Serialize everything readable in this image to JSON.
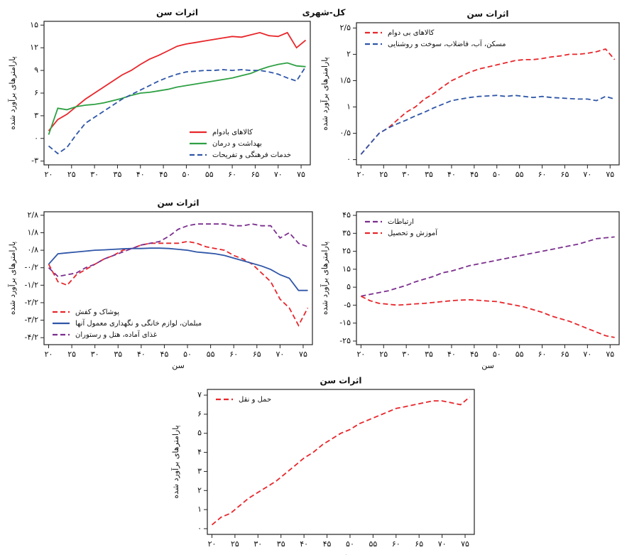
{
  "heading": "کل-شهری",
  "chart_data": [
    {
      "type": "line",
      "title": "اثرات سن",
      "y_label": "پارامترهای برآورد شده",
      "legend": "bottom-right",
      "x": [
        20,
        22,
        24,
        26,
        28,
        30,
        32,
        34,
        36,
        38,
        40,
        42,
        44,
        46,
        48,
        50,
        52,
        54,
        56,
        58,
        60,
        62,
        64,
        66,
        68,
        70,
        72,
        74,
        76
      ],
      "xlim": [
        19,
        77
      ],
      "xticks": [
        {
          "value": 20,
          "label": "۲۰"
        },
        {
          "value": 25,
          "label": "۲۵"
        },
        {
          "value": 30,
          "label": "۳۰"
        },
        {
          "value": 35,
          "label": "۳۵"
        },
        {
          "value": 40,
          "label": "۴۰"
        },
        {
          "value": 45,
          "label": "۴۵"
        },
        {
          "value": 50,
          "label": "۵۰"
        },
        {
          "value": 55,
          "label": "۵۵"
        },
        {
          "value": 60,
          "label": "۶۰"
        },
        {
          "value": 65,
          "label": "۶۵"
        },
        {
          "value": 70,
          "label": "۷۰"
        },
        {
          "value": 75,
          "label": "۷۵"
        }
      ],
      "ylim": [
        -3.5,
        15.5
      ],
      "yticks": [
        {
          "value": 15,
          "label": "۱۵"
        },
        {
          "value": 12,
          "label": "۱۲"
        },
        {
          "value": 9,
          "label": "۹"
        },
        {
          "value": 6,
          "label": "۶"
        },
        {
          "value": 3,
          "label": "۳"
        },
        {
          "value": 0,
          "label": "۰"
        },
        {
          "value": -3,
          "label": "-۳"
        }
      ],
      "series": [
        {
          "name": "کالاهای بادوام",
          "color": "#e8262b",
          "line_style": "solid",
          "values": [
            1,
            2.5,
            3.2,
            4.2,
            5.2,
            6,
            6.8,
            7.6,
            8.4,
            9,
            9.8,
            10.5,
            11,
            11.6,
            12.2,
            12.5,
            12.7,
            12.9,
            13.1,
            13.3,
            13.5,
            13.4,
            13.7,
            14,
            13.6,
            13.5,
            14,
            12,
            13
          ]
        },
        {
          "name": "بهداشت و درمان",
          "color": "#2ea043",
          "line_style": "solid",
          "values": [
            0.5,
            4,
            3.8,
            4.2,
            4.4,
            4.5,
            4.7,
            5,
            5.3,
            5.7,
            6,
            6.1,
            6.3,
            6.5,
            6.8,
            7,
            7.2,
            7.4,
            7.6,
            7.8,
            8,
            8.3,
            8.6,
            9.1,
            9.5,
            9.8,
            10,
            9.6,
            9.5
          ]
        },
        {
          "name": "خدمات فرهنگی و تفریحات",
          "color": "#2f56a8",
          "line_style": "dashed",
          "values": [
            -1,
            -2,
            -1.2,
            0.5,
            2,
            2.8,
            3.6,
            4.4,
            5.2,
            5.8,
            6.4,
            7,
            7.6,
            8.1,
            8.5,
            8.8,
            8.9,
            9,
            9,
            9.1,
            9,
            9.1,
            9,
            9,
            8.8,
            8.5,
            8,
            7.6,
            9.5
          ]
        }
      ]
    },
    {
      "type": "line",
      "title": "اثرات سن",
      "y_label": "پارامترهای برآورد شده",
      "legend": "top-left",
      "x": [
        20,
        22,
        24,
        26,
        28,
        30,
        32,
        34,
        36,
        38,
        40,
        42,
        44,
        46,
        48,
        50,
        52,
        54,
        56,
        58,
        60,
        62,
        64,
        66,
        68,
        70,
        72,
        74,
        76
      ],
      "xlim": [
        19,
        77
      ],
      "xticks": [
        {
          "value": 20,
          "label": "۲۰"
        },
        {
          "value": 25,
          "label": "۲۵"
        },
        {
          "value": 30,
          "label": "۳۰"
        },
        {
          "value": 35,
          "label": "۳۵"
        },
        {
          "value": 40,
          "label": "۴۰"
        },
        {
          "value": 45,
          "label": "۴۵"
        },
        {
          "value": 50,
          "label": "۵۰"
        },
        {
          "value": 55,
          "label": "۵۵"
        },
        {
          "value": 60,
          "label": "۶۰"
        },
        {
          "value": 65,
          "label": "۶۵"
        },
        {
          "value": 70,
          "label": "۷۰"
        },
        {
          "value": 75,
          "label": "۷۵"
        }
      ],
      "ylim": [
        -0.1,
        2.6
      ],
      "yticks": [
        {
          "value": 2.5,
          "label": "۲/۵"
        },
        {
          "value": 2,
          "label": "۲"
        },
        {
          "value": 1.5,
          "label": "۱/۵"
        },
        {
          "value": 1,
          "label": "۱"
        },
        {
          "value": 0.5,
          "label": "۰/۵"
        },
        {
          "value": 0,
          "label": "۰"
        }
      ],
      "series": [
        {
          "name": "کالاهای بی دوام",
          "color": "#e8262b",
          "line_style": "dashed",
          "values": [
            0.1,
            0.3,
            0.5,
            0.6,
            0.75,
            0.9,
            1.0,
            1.15,
            1.25,
            1.38,
            1.5,
            1.58,
            1.66,
            1.72,
            1.76,
            1.8,
            1.84,
            1.88,
            1.9,
            1.9,
            1.92,
            1.95,
            1.97,
            2.0,
            2.0,
            2.02,
            2.05,
            2.1,
            1.9
          ]
        },
        {
          "name": "مسکن، آب، فاضلاب، سوخت و روشنایی",
          "color": "#2f56a8",
          "line_style": "dashed",
          "values": [
            0.1,
            0.3,
            0.5,
            0.6,
            0.68,
            0.75,
            0.83,
            0.9,
            0.98,
            1.05,
            1.12,
            1.15,
            1.18,
            1.2,
            1.21,
            1.22,
            1.2,
            1.22,
            1.2,
            1.18,
            1.2,
            1.18,
            1.17,
            1.16,
            1.15,
            1.15,
            1.12,
            1.2,
            1.15
          ]
        }
      ]
    },
    {
      "type": "line",
      "title": "اثرات سن",
      "y_label": "پارامترهای برآورد شده",
      "x_label": "سن",
      "legend": "bottom-left",
      "x": [
        20,
        22,
        24,
        26,
        28,
        30,
        32,
        34,
        36,
        38,
        40,
        42,
        44,
        46,
        48,
        50,
        52,
        54,
        56,
        58,
        60,
        62,
        64,
        66,
        68,
        70,
        72,
        74,
        76
      ],
      "xlim": [
        19,
        77
      ],
      "xticks": [
        {
          "value": 20,
          "label": "۲۰"
        },
        {
          "value": 25,
          "label": "۲۵"
        },
        {
          "value": 30,
          "label": "۳۰"
        },
        {
          "value": 35,
          "label": "۳۵"
        },
        {
          "value": 40,
          "label": "۴۰"
        },
        {
          "value": 45,
          "label": "۴۵"
        },
        {
          "value": 50,
          "label": "۵۰"
        },
        {
          "value": 55,
          "label": "۵۵"
        },
        {
          "value": 60,
          "label": "۶۰"
        },
        {
          "value": 65,
          "label": "۶۵"
        },
        {
          "value": 70,
          "label": "۷۰"
        },
        {
          "value": 75,
          "label": "۷۵"
        }
      ],
      "ylim": [
        -4.6,
        3.0
      ],
      "yticks": [
        {
          "value": 2.8,
          "label": "۲/۸"
        },
        {
          "value": 1.8,
          "label": "۱/۸"
        },
        {
          "value": 0.8,
          "label": "۰/۸"
        },
        {
          "value": -0.2,
          "label": "-۰/۲"
        },
        {
          "value": -1.2,
          "label": "-۱/۲"
        },
        {
          "value": -2.2,
          "label": "-۲/۲"
        },
        {
          "value": -3.2,
          "label": "-۳/۲"
        },
        {
          "value": -4.2,
          "label": "-۴/۲"
        }
      ],
      "series": [
        {
          "name": "پوشاک و کفش",
          "color": "#e8262b",
          "line_style": "dashed",
          "values": [
            0,
            -1,
            -1.2,
            -0.6,
            -0.3,
            0,
            0.3,
            0.5,
            0.8,
            0.9,
            1.1,
            1.2,
            1.2,
            1.2,
            1.2,
            1.3,
            1.2,
            1.0,
            0.9,
            0.8,
            0.5,
            0.3,
            0,
            -0.5,
            -1,
            -2,
            -2.5,
            -3.5,
            -2.5
          ]
        },
        {
          "name": "مبلمان، لوازم خانگی و نگهداری معمول آنها",
          "color": "#2f56a8",
          "line_style": "solid",
          "values": [
            0,
            0.6,
            0.65,
            0.7,
            0.75,
            0.8,
            0.82,
            0.85,
            0.88,
            0.9,
            0.9,
            0.92,
            0.92,
            0.9,
            0.85,
            0.8,
            0.7,
            0.65,
            0.6,
            0.5,
            0.35,
            0.2,
            0.05,
            -0.1,
            -0.3,
            -0.6,
            -0.8,
            -1.5,
            -1.5
          ]
        },
        {
          "name": "غذای آماده، هتل و رستوران",
          "color": "#7b2f8e",
          "line_style": "dashed",
          "values": [
            -0.2,
            -0.7,
            -0.6,
            -0.5,
            -0.2,
            0,
            0.3,
            0.5,
            0.7,
            0.9,
            1.1,
            1.2,
            1.3,
            1.6,
            2.0,
            2.2,
            2.3,
            2.3,
            2.3,
            2.3,
            2.2,
            2.2,
            2.3,
            2.2,
            2.2,
            1.5,
            1.8,
            1.2,
            1.0
          ]
        }
      ]
    },
    {
      "type": "line",
      "y_label": "پارامترهای برآورد شده",
      "x_label": "سن",
      "legend": "top-left",
      "x": [
        20,
        22,
        24,
        26,
        28,
        30,
        32,
        34,
        36,
        38,
        40,
        42,
        44,
        46,
        48,
        50,
        52,
        54,
        56,
        58,
        60,
        62,
        64,
        66,
        68,
        70,
        72,
        74,
        76
      ],
      "xlim": [
        19,
        77
      ],
      "xticks": [
        {
          "value": 20,
          "label": "۲۰"
        },
        {
          "value": 25,
          "label": "۲۵"
        },
        {
          "value": 30,
          "label": "۳۰"
        },
        {
          "value": 35,
          "label": "۳۵"
        },
        {
          "value": 40,
          "label": "۴۰"
        },
        {
          "value": 45,
          "label": "۴۵"
        },
        {
          "value": 50,
          "label": "۵۰"
        },
        {
          "value": 55,
          "label": "۵۵"
        },
        {
          "value": 60,
          "label": "۶۰"
        },
        {
          "value": 65,
          "label": "۶۵"
        },
        {
          "value": 70,
          "label": "۷۰"
        },
        {
          "value": 75,
          "label": "۷۵"
        }
      ],
      "ylim": [
        -27,
        47
      ],
      "yticks": [
        {
          "value": 45,
          "label": "۴۵"
        },
        {
          "value": 35,
          "label": "۳۵"
        },
        {
          "value": 25,
          "label": "۲۵"
        },
        {
          "value": 15,
          "label": "۱۵"
        },
        {
          "value": 5,
          "label": "۵"
        },
        {
          "value": -5,
          "label": "-۵"
        },
        {
          "value": -15,
          "label": "-۱۵"
        },
        {
          "value": -25,
          "label": "-۲۵"
        }
      ],
      "series": [
        {
          "name": "ارتباطات",
          "color": "#7b2f8e",
          "line_style": "dashed",
          "values": [
            0,
            1,
            2,
            3,
            4.5,
            6,
            8,
            9.5,
            11,
            13,
            14,
            15.5,
            17,
            18,
            19,
            20,
            21,
            22,
            23,
            24,
            25,
            26,
            27,
            28,
            29,
            30.5,
            32,
            32.5,
            33
          ]
        },
        {
          "name": "آموزش و تحصیل",
          "color": "#e8262b",
          "line_style": "dashed",
          "values": [
            0,
            -2.5,
            -4,
            -4.5,
            -5,
            -4.7,
            -4.3,
            -4,
            -3.5,
            -3,
            -2.5,
            -2.2,
            -2,
            -2.3,
            -2.7,
            -3,
            -4,
            -5,
            -6,
            -7.5,
            -9,
            -11,
            -12.5,
            -14,
            -16,
            -18,
            -20,
            -22,
            -23
          ]
        }
      ]
    },
    {
      "type": "line",
      "title": "اثرات سن",
      "y_label": "پارامترهای برآورد شده",
      "x_label": "سن",
      "legend": "top-left",
      "x": [
        20,
        22,
        24,
        26,
        28,
        30,
        32,
        34,
        36,
        38,
        40,
        42,
        44,
        46,
        48,
        50,
        52,
        54,
        56,
        58,
        60,
        62,
        64,
        66,
        68,
        70,
        72,
        74,
        76
      ],
      "xlim": [
        19,
        77
      ],
      "xticks": [
        {
          "value": 20,
          "label": "۲۰"
        },
        {
          "value": 25,
          "label": "۲۵"
        },
        {
          "value": 30,
          "label": "۳۰"
        },
        {
          "value": 35,
          "label": "۳۵"
        },
        {
          "value": 40,
          "label": "۴۰"
        },
        {
          "value": 45,
          "label": "۴۵"
        },
        {
          "value": 50,
          "label": "۵۰"
        },
        {
          "value": 55,
          "label": "۵۵"
        },
        {
          "value": 60,
          "label": "۶۰"
        },
        {
          "value": 65,
          "label": "۶۵"
        },
        {
          "value": 70,
          "label": "۷۰"
        },
        {
          "value": 75,
          "label": "۷۵"
        }
      ],
      "ylim": [
        -0.3,
        7.3
      ],
      "yticks": [
        {
          "value": 7,
          "label": "۷"
        },
        {
          "value": 6,
          "label": "۶"
        },
        {
          "value": 5,
          "label": "۵"
        },
        {
          "value": 4,
          "label": "۴"
        },
        {
          "value": 3,
          "label": "۳"
        },
        {
          "value": 2,
          "label": "۲"
        },
        {
          "value": 1,
          "label": "۱"
        },
        {
          "value": 0,
          "label": "۰"
        }
      ],
      "series": [
        {
          "name": "حمل و نقل",
          "color": "#e8262b",
          "line_style": "dashed",
          "values": [
            0.2,
            0.6,
            0.8,
            1.2,
            1.6,
            1.9,
            2.2,
            2.5,
            2.9,
            3.3,
            3.7,
            4.0,
            4.4,
            4.7,
            5.0,
            5.2,
            5.5,
            5.7,
            5.9,
            6.1,
            6.3,
            6.4,
            6.5,
            6.6,
            6.7,
            6.7,
            6.6,
            6.5,
            6.9
          ]
        }
      ]
    }
  ]
}
